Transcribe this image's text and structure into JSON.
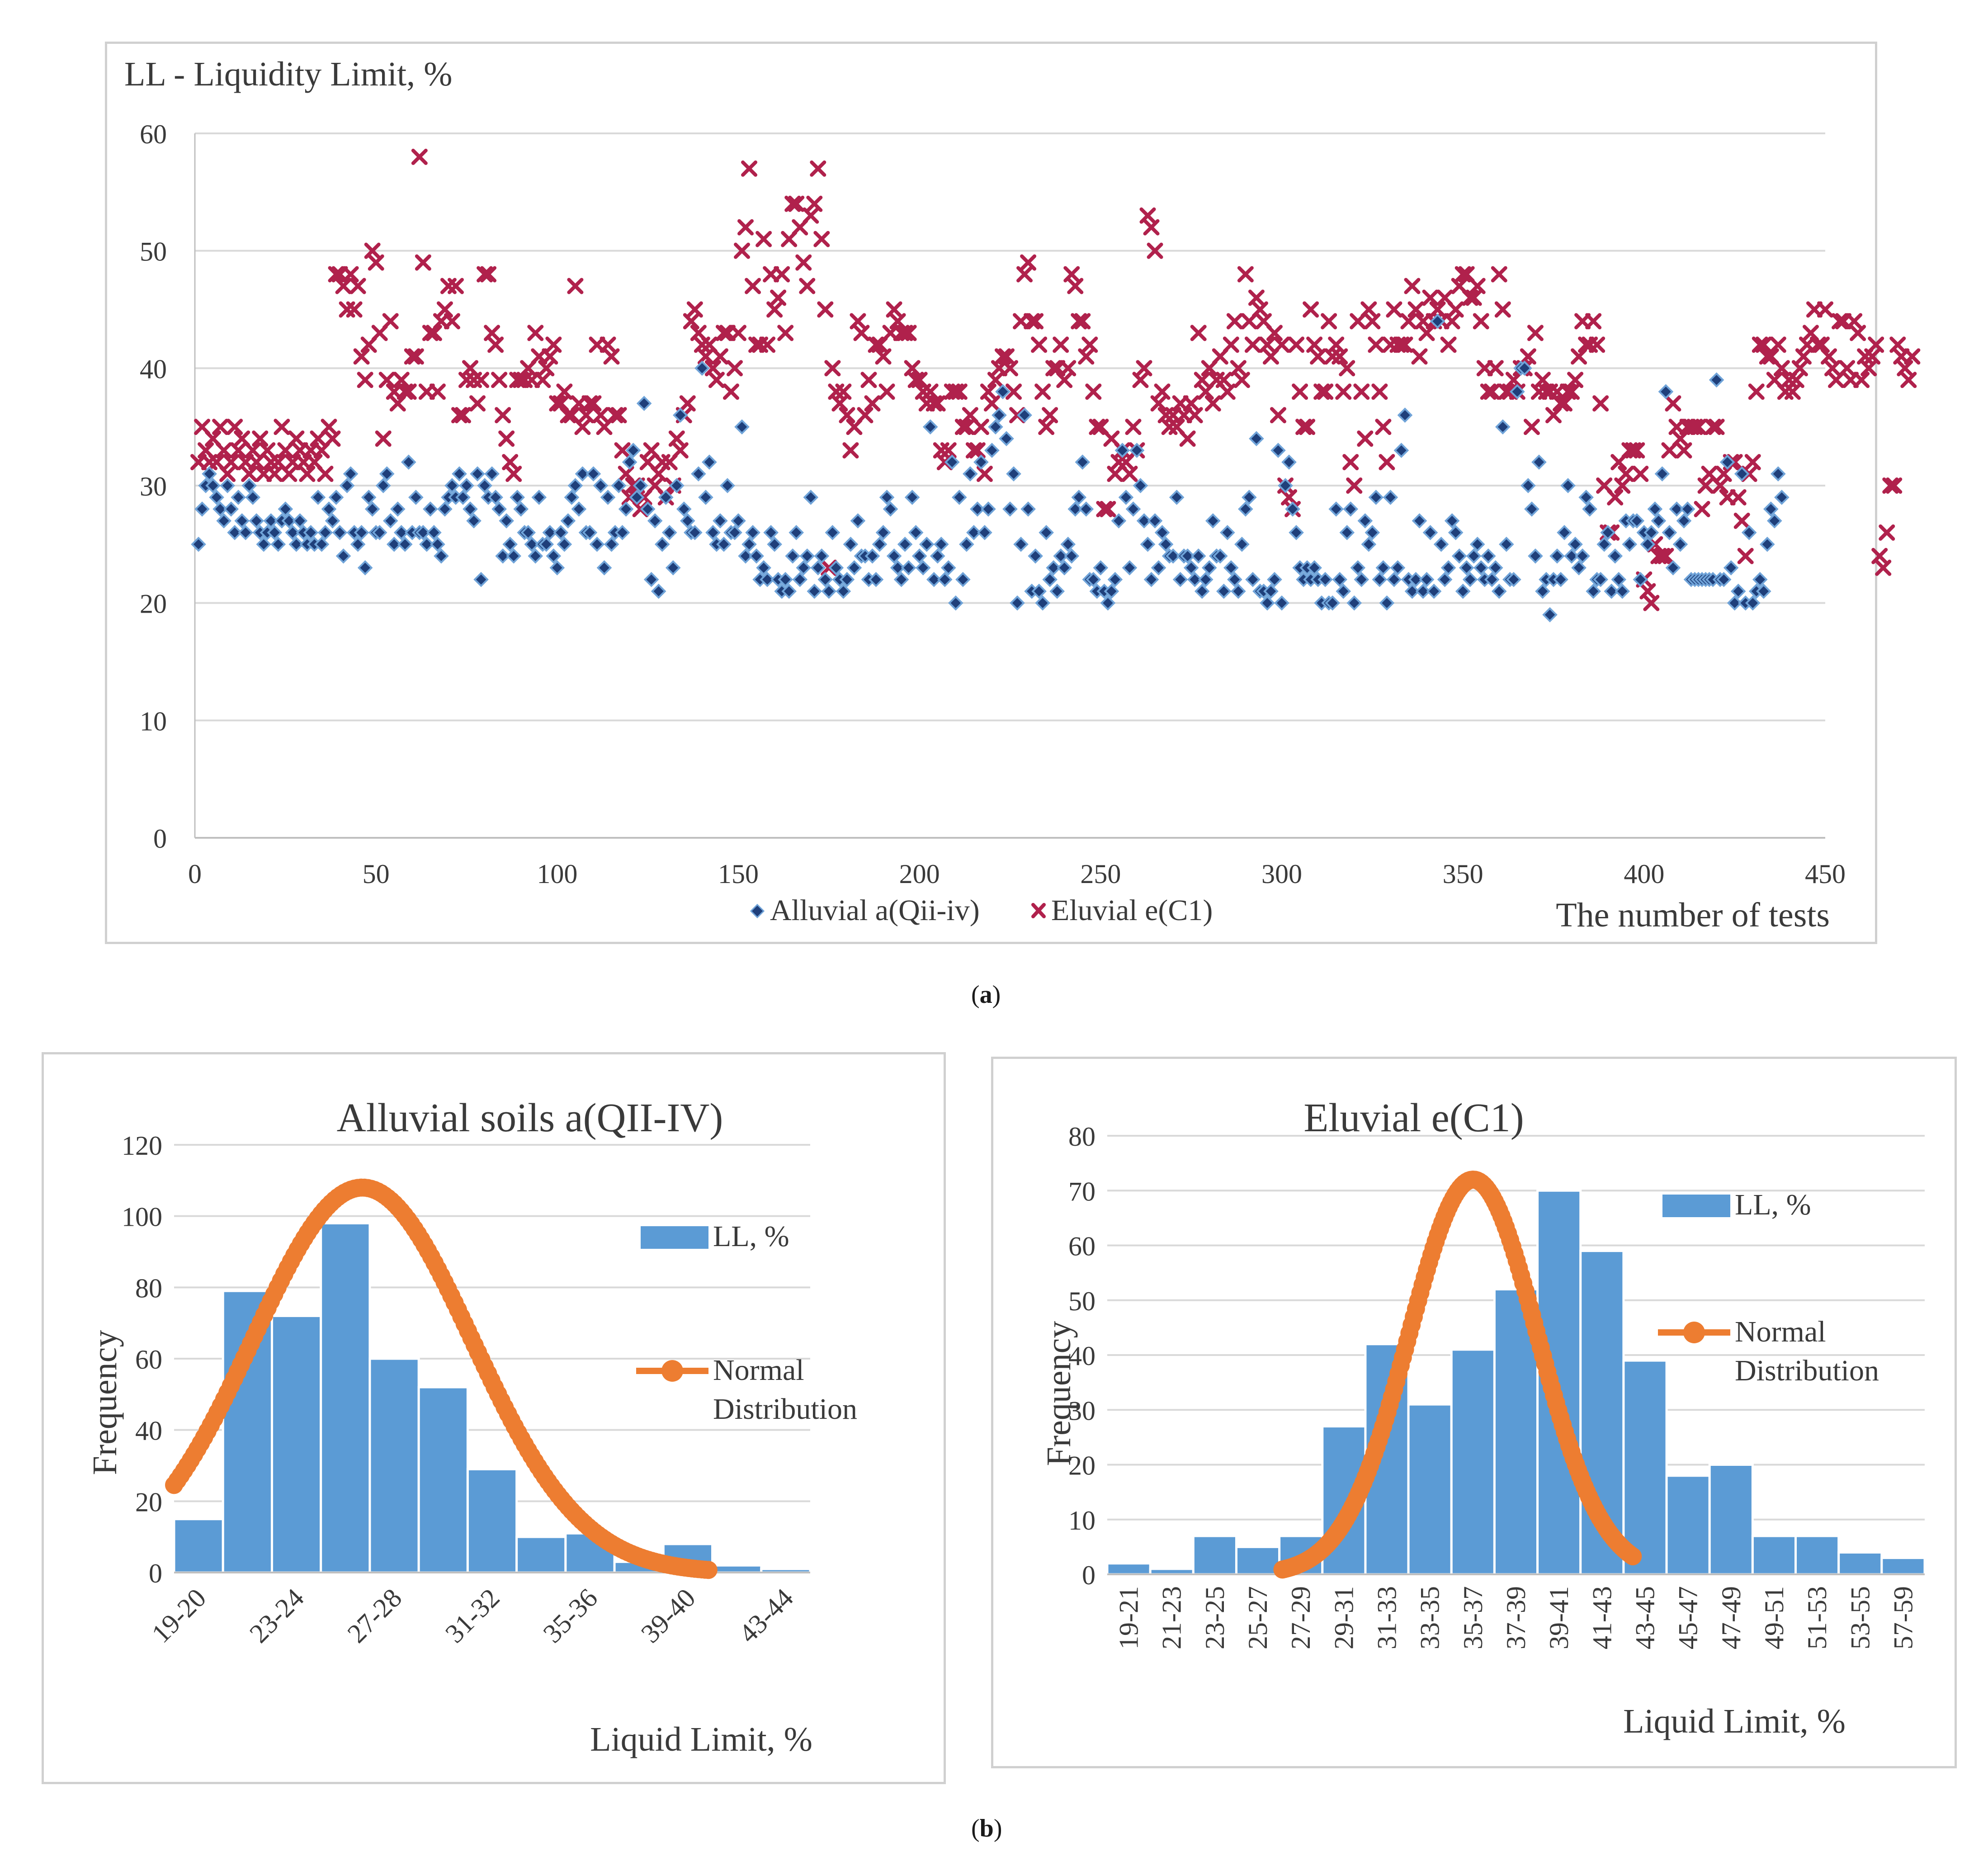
{
  "captions": {
    "a": "a",
    "b": "b"
  },
  "chart_data": [
    {
      "id": "a",
      "type": "scatter",
      "title": "LL  - Liquidity Limit, %",
      "xlabel": "The number of tests",
      "ylabel": "",
      "xlim": [
        0,
        450
      ],
      "ylim": [
        0,
        60
      ],
      "x_ticks": [
        0,
        50,
        100,
        150,
        200,
        250,
        300,
        350,
        400,
        450
      ],
      "y_ticks": [
        0,
        10,
        20,
        30,
        40,
        50,
        60
      ],
      "legend": [
        "Alluvial a(Qii-iv)",
        "Eluvial e(C1)"
      ],
      "series": [
        {
          "name": "Alluvial a(Qii-iv)",
          "color": "#1f3f7a",
          "marker": "diamond",
          "values": [
            25,
            28,
            30,
            31,
            30,
            29,
            28,
            27,
            30,
            28,
            26,
            29,
            27,
            26,
            30,
            29,
            27,
            26,
            25,
            26,
            27,
            26,
            25,
            27,
            28,
            27,
            26,
            25,
            27,
            26,
            25,
            26,
            25,
            29,
            25,
            26,
            28,
            27,
            29,
            26,
            24,
            30,
            31,
            26,
            25,
            26,
            23,
            29,
            28,
            26,
            26,
            30,
            31,
            27,
            25,
            28,
            26,
            25,
            32,
            26,
            29,
            26,
            26,
            25,
            28,
            26,
            25,
            24,
            28,
            29,
            30,
            29,
            31,
            29,
            30,
            28,
            27,
            31,
            22,
            30,
            29,
            31,
            29,
            28,
            24,
            27,
            25,
            24,
            29,
            28,
            26,
            26,
            25,
            24,
            29,
            25,
            25,
            26,
            24,
            23,
            26,
            25,
            27,
            29,
            30,
            28,
            31,
            26,
            26,
            31,
            25,
            30,
            23,
            29,
            25,
            26,
            30,
            26,
            28,
            32,
            33,
            29,
            30,
            37,
            28,
            22,
            27,
            21,
            25,
            29,
            26,
            23,
            30,
            36,
            28,
            27,
            26,
            26,
            31,
            40,
            29,
            32,
            26,
            25,
            27,
            25,
            30,
            26,
            26,
            27,
            35,
            24,
            25,
            26,
            24,
            22,
            23,
            22,
            26,
            25,
            22,
            21,
            22,
            21,
            24,
            26,
            22,
            23,
            24,
            29,
            21,
            23,
            24,
            22,
            21,
            26,
            23,
            22,
            21,
            22,
            25,
            23,
            27,
            24,
            24,
            22,
            24,
            22,
            25,
            26,
            29,
            28,
            24,
            23,
            22,
            25,
            23,
            29,
            26,
            24,
            23,
            25,
            35,
            22,
            24,
            25,
            22,
            23,
            32,
            20,
            29,
            22,
            25,
            31,
            26,
            28,
            32,
            26,
            28,
            33,
            35,
            36,
            38,
            34,
            28,
            31,
            20,
            25,
            36,
            28,
            21,
            24,
            21,
            20,
            26,
            22,
            23,
            21,
            24,
            23,
            25,
            24,
            28,
            29,
            32,
            28,
            22,
            22,
            21,
            23,
            21,
            20,
            21,
            22,
            27,
            33,
            29,
            23,
            28,
            33,
            30,
            27,
            25,
            22,
            27,
            23,
            26,
            25,
            24,
            24,
            29,
            22,
            24,
            24,
            23,
            22,
            24,
            21,
            22,
            23,
            27,
            24,
            24,
            21,
            26,
            23,
            22,
            21,
            25,
            28,
            29,
            22,
            34,
            21,
            21,
            20,
            21,
            22,
            33,
            20,
            30,
            32,
            28,
            26,
            23,
            22,
            23,
            22,
            23,
            22,
            20,
            22,
            20,
            20,
            28,
            22,
            21,
            26,
            28,
            20,
            23,
            22,
            27,
            25,
            26,
            29,
            22,
            23,
            20,
            29,
            22,
            23,
            33,
            36,
            22,
            21,
            22,
            27,
            21,
            22,
            26,
            21,
            44,
            25,
            22,
            23,
            27,
            26,
            24,
            21,
            23,
            22,
            24,
            25,
            23,
            22,
            24,
            22,
            23,
            21,
            35,
            25,
            22,
            22,
            38,
            40,
            40,
            30,
            28,
            24,
            32,
            21,
            22,
            19,
            22,
            24,
            22,
            26,
            30,
            24,
            25,
            23,
            24,
            29,
            28,
            21,
            22,
            22,
            25,
            26,
            21,
            24,
            22,
            21,
            27,
            25,
            27,
            27,
            22,
            26,
            25,
            26,
            28,
            27,
            31,
            38,
            26,
            23,
            28,
            25,
            27,
            28,
            22,
            22,
            22,
            22,
            22,
            22,
            22,
            39,
            22,
            22,
            32,
            23,
            20,
            21,
            31,
            20,
            26,
            20,
            21,
            22,
            21,
            25,
            28,
            27,
            31,
            29
          ]
        },
        {
          "name": "Eluvial e(C1)",
          "color": "#b0214c",
          "marker": "x",
          "values": [
            32,
            35,
            33,
            32,
            34,
            32,
            35,
            33,
            31,
            32,
            35,
            33,
            34,
            32,
            31,
            33,
            32,
            34,
            31,
            33,
            32,
            31,
            32,
            35,
            33,
            31,
            32,
            34,
            33,
            32,
            31,
            33,
            32,
            34,
            33,
            31,
            35,
            34,
            48,
            48,
            47,
            45,
            48,
            45,
            47,
            41,
            39,
            42,
            50,
            49,
            43,
            34,
            39,
            44,
            38,
            37,
            39,
            38,
            38,
            41,
            41,
            58,
            49,
            38,
            43,
            43,
            38,
            44,
            45,
            47,
            44,
            47,
            36,
            36,
            39,
            40,
            39,
            37,
            39,
            48,
            48,
            43,
            42,
            39,
            36,
            34,
            32,
            31,
            39,
            39,
            39,
            40,
            39,
            43,
            41,
            39,
            40,
            41,
            42,
            37,
            37,
            38,
            36,
            36,
            47,
            37,
            35,
            36,
            37,
            37,
            42,
            36,
            35,
            42,
            41,
            36,
            36,
            33,
            31,
            29,
            30,
            30,
            28,
            29,
            32,
            33,
            30,
            31,
            32,
            29,
            32,
            30,
            34,
            33,
            36,
            37,
            44,
            45,
            43,
            42,
            41,
            42,
            40,
            39,
            41,
            43,
            43,
            38,
            40,
            43,
            50,
            52,
            57,
            47,
            42,
            42,
            51,
            42,
            48,
            45,
            46,
            48,
            43,
            51,
            54,
            54,
            52,
            49,
            47,
            53,
            54,
            57,
            51,
            45,
            23,
            40,
            38,
            37,
            38,
            36,
            33,
            35,
            44,
            43,
            36,
            39,
            37,
            42,
            42,
            41,
            38,
            43,
            45,
            44,
            43,
            43,
            43,
            40,
            39,
            39,
            38,
            37,
            38,
            37,
            37,
            33,
            32,
            33,
            38,
            38,
            38,
            35,
            35,
            36,
            33,
            33,
            35,
            31,
            38,
            37,
            39,
            40,
            41,
            41,
            40,
            38,
            36,
            44,
            48,
            49,
            44,
            44,
            42,
            38,
            35,
            36,
            40,
            40,
            42,
            39,
            40,
            48,
            47,
            44,
            44,
            41,
            42,
            38,
            35,
            35,
            28,
            28,
            34,
            31,
            32,
            33,
            32,
            31,
            35,
            33,
            39,
            40,
            53,
            52,
            50,
            37,
            38,
            36,
            35,
            36,
            35,
            37,
            36,
            34,
            37,
            36,
            43,
            39,
            38,
            40,
            37,
            39,
            41,
            39,
            38,
            42,
            44,
            40,
            39,
            48,
            44,
            42,
            46,
            45,
            44,
            42,
            41,
            43,
            36,
            42,
            30,
            29,
            28,
            42,
            38,
            35,
            35,
            45,
            42,
            41,
            38,
            38,
            44,
            41,
            42,
            41,
            38,
            40,
            32,
            30,
            44,
            38,
            34,
            45,
            44,
            42,
            38,
            35,
            32,
            42,
            45,
            42,
            42,
            42,
            44,
            47,
            45,
            41,
            44,
            43,
            46,
            44,
            45,
            44,
            46,
            42,
            44,
            45,
            47,
            48,
            48,
            46,
            46,
            47,
            44,
            40,
            38,
            38,
            40,
            48,
            45,
            38,
            38,
            39,
            38,
            40,
            40,
            41,
            35,
            43,
            38,
            39,
            38,
            38,
            36,
            38,
            37,
            37,
            38,
            38,
            39,
            41,
            44,
            42,
            42,
            44,
            42,
            37,
            30,
            26,
            26,
            29,
            32,
            30,
            31,
            33,
            33,
            33,
            31,
            22,
            21,
            20,
            25,
            24,
            24,
            24,
            33,
            37,
            35,
            34,
            33,
            35,
            35,
            35,
            35,
            28,
            30,
            31,
            35,
            35,
            30,
            31,
            29,
            32,
            32,
            29,
            27,
            24,
            31,
            32,
            38,
            42,
            42,
            41,
            41,
            39,
            42,
            40,
            38,
            39,
            38,
            39,
            40,
            41,
            42,
            43,
            45,
            42,
            42,
            45,
            41,
            40,
            39,
            44,
            44,
            40,
            39,
            44,
            43,
            39,
            41,
            40,
            41,
            42,
            24,
            23,
            26,
            30,
            30,
            42,
            41,
            40,
            39,
            41
          ]
        }
      ]
    },
    {
      "id": "b-left",
      "type": "bar",
      "title": "Alluvial soils a(QII-IV)",
      "xlabel": "Liquid Limit, %",
      "ylabel": "Frequency",
      "ylim": [
        0,
        120
      ],
      "y_ticks": [
        0,
        20,
        40,
        60,
        80,
        100,
        120
      ],
      "categories": [
        "19-20",
        "21-22",
        "23-24",
        "25-26",
        "27-28",
        "29-30",
        "31-32",
        "33-34",
        "35-36",
        "37-38",
        "39-40",
        "41-42",
        "43-44"
      ],
      "tick_labels": [
        "19-20",
        "23-24",
        "27-28",
        "31-32",
        "35-36",
        "39-40",
        "43-44"
      ],
      "values": [
        15,
        79,
        72,
        98,
        60,
        52,
        29,
        10,
        11,
        3,
        8,
        2,
        1
      ],
      "bar_color": "#5b9bd5",
      "legend": [
        "LL, %",
        "Normal Distribution"
      ],
      "normal_curve": {
        "color": "#ed7d31",
        "mean": 26.4,
        "sd": 4.3,
        "peak": 108,
        "x_range": [
          19,
          40
        ]
      }
    },
    {
      "id": "b-right",
      "type": "bar",
      "title": "Eluvial e(C1)",
      "xlabel": "Liquid Limit, %",
      "ylabel": "Frequency",
      "ylim": [
        0,
        80
      ],
      "y_ticks": [
        0,
        10,
        20,
        30,
        40,
        50,
        60,
        70,
        80
      ],
      "categories": [
        "19-21",
        "21-23",
        "23-25",
        "25-27",
        "27-29",
        "29-31",
        "31-33",
        "33-35",
        "35-37",
        "37-39",
        "39-41",
        "41-43",
        "43-45",
        "45-47",
        "47-49",
        "49-51",
        "51-53",
        "53-55",
        "57-59"
      ],
      "values": [
        2,
        1,
        7,
        5,
        7,
        27,
        42,
        31,
        41,
        52,
        70,
        59,
        39,
        18,
        20,
        7,
        7,
        4,
        3
      ],
      "bar_color": "#5b9bd5",
      "legend": [
        "LL, %",
        "Normal Distribution"
      ],
      "normal_curve": {
        "color": "#ed7d31",
        "mean": 37.8,
        "sd": 3.3,
        "peak": 72,
        "x_range": [
          28,
          46
        ]
      }
    }
  ]
}
